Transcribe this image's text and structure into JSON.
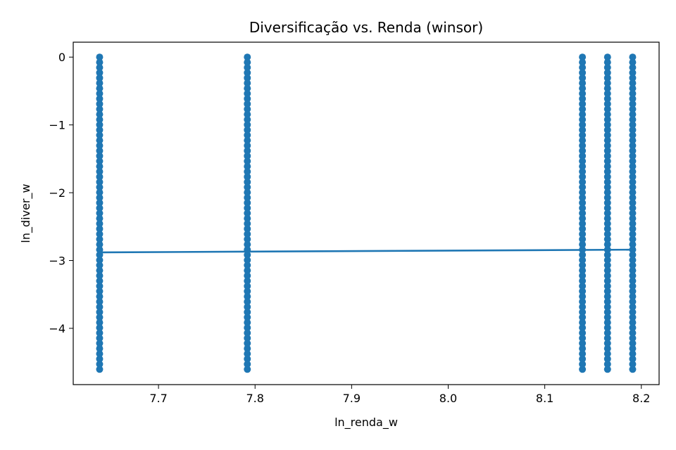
{
  "chart_data": {
    "type": "scatter",
    "title": "Diversificação vs. Renda (winsor)",
    "xlabel": "ln_renda_w",
    "ylabel": "ln_diver_w",
    "xlim": [
      7.6117,
      8.2184
    ],
    "ylim": [
      -4.83,
      0.22
    ],
    "xticks": [
      7.7,
      7.8,
      7.9,
      8.0,
      8.1,
      8.2
    ],
    "xtick_labels": [
      "7.7",
      "7.8",
      "7.9",
      "8.0",
      "8.1",
      "8.2"
    ],
    "yticks": [
      0,
      -1,
      -2,
      -3,
      -4
    ],
    "ytick_labels": [
      "0",
      "−1",
      "−2",
      "−3",
      "−4"
    ],
    "grid": false,
    "color": "#1f77b4",
    "scatter_columns": [
      {
        "x": 7.639,
        "y_min": -4.605,
        "y_max": 0.0
      },
      {
        "x": 7.792,
        "y_min": -4.605,
        "y_max": 0.0
      },
      {
        "x": 8.139,
        "y_min": -4.605,
        "y_max": 0.0
      },
      {
        "x": 8.165,
        "y_min": -4.605,
        "y_max": 0.0
      },
      {
        "x": 8.191,
        "y_min": -4.605,
        "y_max": 0.0
      }
    ],
    "fit_line": {
      "x": [
        7.639,
        8.191
      ],
      "y": [
        -2.88,
        -2.84
      ]
    }
  }
}
